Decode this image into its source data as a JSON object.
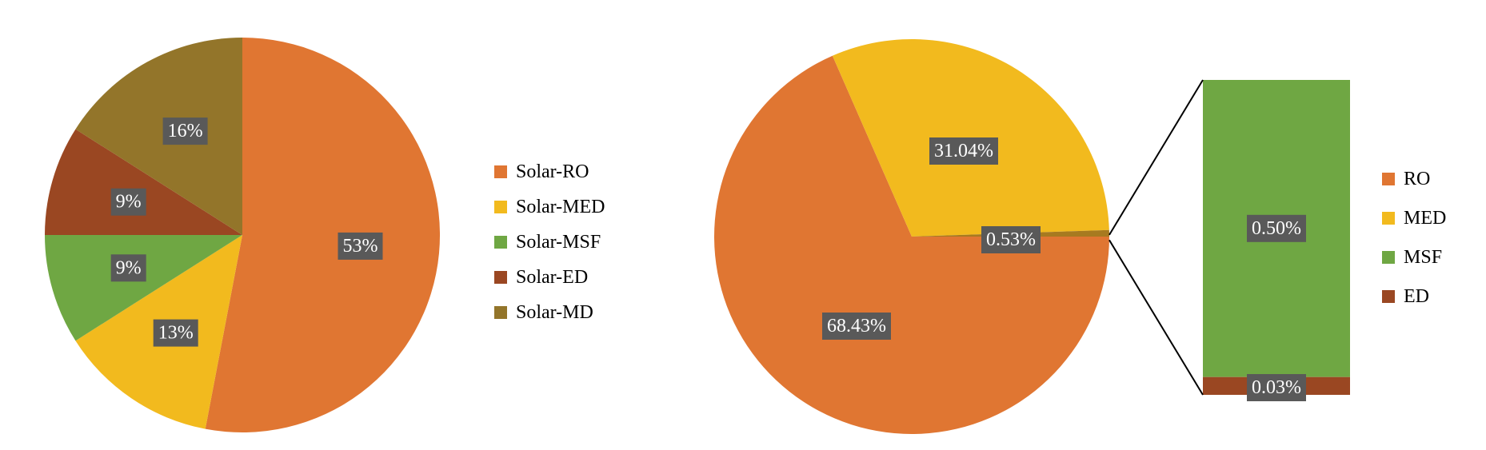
{
  "chart_data": [
    {
      "type": "pie",
      "categories": [
        "Solar-RO",
        "Solar-MED",
        "Solar-MSF",
        "Solar-ED",
        "Solar-MD"
      ],
      "values": [
        53,
        13,
        9,
        9,
        16
      ],
      "data_labels": [
        "53%",
        "13%",
        "9%",
        "9%",
        "16%"
      ],
      "colors": [
        "#E07632",
        "#F2BA1E",
        "#6FA743",
        "#9A4722",
        "#93752A"
      ],
      "legend": "right"
    },
    {
      "type": "pie",
      "subtype": "pie-of-bar",
      "categories": [
        "RO",
        "MED",
        "MSF",
        "ED"
      ],
      "values": [
        68.43,
        31.04,
        0.5,
        0.03
      ],
      "data_labels": [
        "68.43%",
        "31.04%",
        "0.50%",
        "0.03%"
      ],
      "other_label": "0.53%",
      "other_value": 0.53,
      "colors": [
        "#E07632",
        "#F2BA1E",
        "#6FA743",
        "#9A4722"
      ],
      "legend": "right"
    }
  ]
}
